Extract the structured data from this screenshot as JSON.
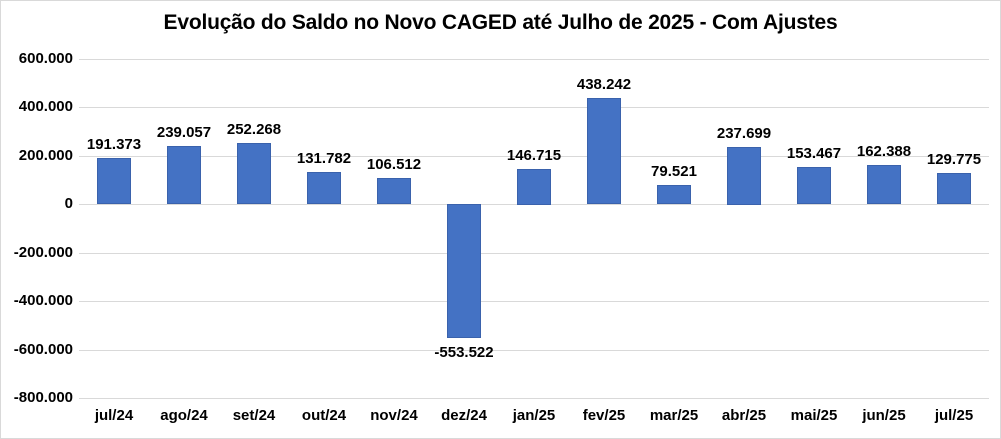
{
  "chart_data": {
    "type": "bar",
    "title": "Evolução do Saldo no Novo CAGED até Julho de 2025 - Com Ajustes",
    "categories": [
      "jul/24",
      "ago/24",
      "set/24",
      "out/24",
      "nov/24",
      "dez/24",
      "jan/25",
      "fev/25",
      "mar/25",
      "abr/25",
      "mai/25",
      "jun/25",
      "jul/25"
    ],
    "values": [
      191373,
      239057,
      252268,
      131782,
      106512,
      -553522,
      146715,
      438242,
      79521,
      237699,
      153467,
      162388,
      129775
    ],
    "value_labels": [
      "191.373",
      "239.057",
      "252.268",
      "131.782",
      "106.512",
      "-553.522",
      "146.715",
      "438.242",
      "79.521",
      "237.699",
      "153.467",
      "162.388",
      "129.775"
    ],
    "xlabel": "",
    "ylabel": "",
    "ylim": [
      -800000,
      600000
    ],
    "yticks": [
      {
        "value": 600000,
        "label": "600.000"
      },
      {
        "value": 400000,
        "label": "400.000"
      },
      {
        "value": 200000,
        "label": "200.000"
      },
      {
        "value": 0,
        "label": "0"
      },
      {
        "value": -200000,
        "label": "-200.000"
      },
      {
        "value": -400000,
        "label": "-400.000"
      },
      {
        "value": -600000,
        "label": "-600.000"
      },
      {
        "value": -800000,
        "label": "-800.000"
      }
    ],
    "grid": true,
    "legend": "none",
    "colors": {
      "bar_fill": "#4472c4",
      "bar_border": "#3a62ac",
      "gridline": "#d9d9d9",
      "text": "#000000",
      "chart_border": "#d9d9d9",
      "background": "#ffffff"
    }
  }
}
